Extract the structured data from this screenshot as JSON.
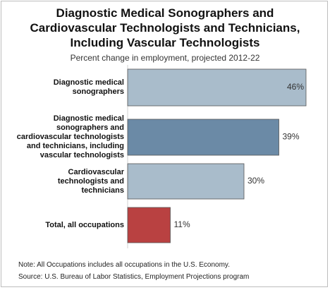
{
  "chart_data": {
    "type": "bar",
    "orientation": "horizontal",
    "title": "Diagnostic Medical Sonographers and\nCardiovascular Technologists and Technicians,\nIncluding Vascular Technologists",
    "subtitle": "Percent change in employment, projected 2012-22",
    "categories": [
      "Diagnostic medical\nsonographers",
      "Diagnostic medical\nsonographers and\ncardiovascular technologists\nand technicians, including\nvascular technologists",
      "Cardiovascular\ntechnologists and\ntechnicians",
      "Total, all occupations"
    ],
    "values": [
      46,
      39,
      30,
      11
    ],
    "value_labels": [
      "46%",
      "39%",
      "30%",
      "11%"
    ],
    "colors": [
      "#a9bccb",
      "#6b8aa6",
      "#a9bccb",
      "#b94141"
    ],
    "notes": [
      "Note: All Occupations includes all occupations in the U.S. Economy.",
      "Source: U.S. Bureau of Labor Statistics, Employment Projections program"
    ]
  }
}
